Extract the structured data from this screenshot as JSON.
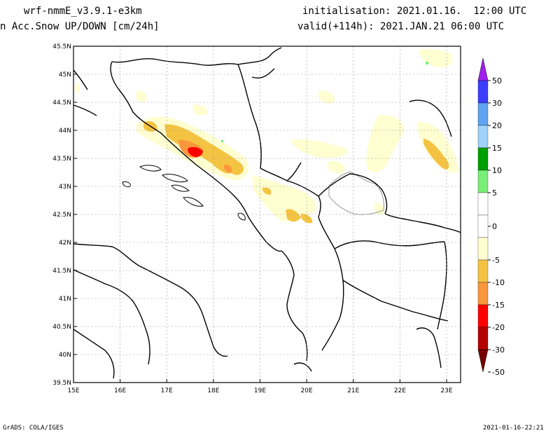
{
  "header": {
    "model": "wrf-nmmE_v3.9.1-e3km",
    "field": "n Acc.Snow UP/DOWN [cm/24h]",
    "init": "initialisation: 2021.01.16.  12:00 UTC",
    "valid": "valid(+114h): 2021.JAN.21 06:00 UTC"
  },
  "map": {
    "lon_labels": [
      "15E",
      "16E",
      "17E",
      "18E",
      "19E",
      "20E",
      "21E",
      "22E",
      "23E"
    ],
    "lat_labels": [
      "45.5N",
      "45N",
      "44.5N",
      "44N",
      "43.5N",
      "43N",
      "42.5N",
      "42N",
      "41.5N",
      "41N",
      "40.5N",
      "40N",
      "39.5N"
    ],
    "lon_range": [
      15,
      23.3
    ],
    "lat_range": [
      39.5,
      45.5
    ]
  },
  "legend": {
    "labels": [
      "50",
      "30",
      "20",
      "15",
      "10",
      "5",
      "0",
      "-5",
      "-10",
      "-15",
      "-20",
      "-30",
      "-50"
    ],
    "colors": {
      "top_arrow": "#a020f0",
      "50_30": "#3c3cff",
      "30_20": "#5fa4f2",
      "20_15": "#a0d2fa",
      "15_10": "#00a000",
      "10_5": "#78ef78",
      "5_-5": "#ffffff",
      "-5_-10": "#fefed0",
      "-10_-15": "#f5c342",
      "-15_-20": "#fa963c",
      "-20_-30": "#ff0000",
      "-30_-50": "#b40000",
      "bottom_arrow": "#780000"
    }
  },
  "footer": {
    "left": "GrADS: COLA/IGES",
    "right": "2021-01-16-22:21"
  }
}
